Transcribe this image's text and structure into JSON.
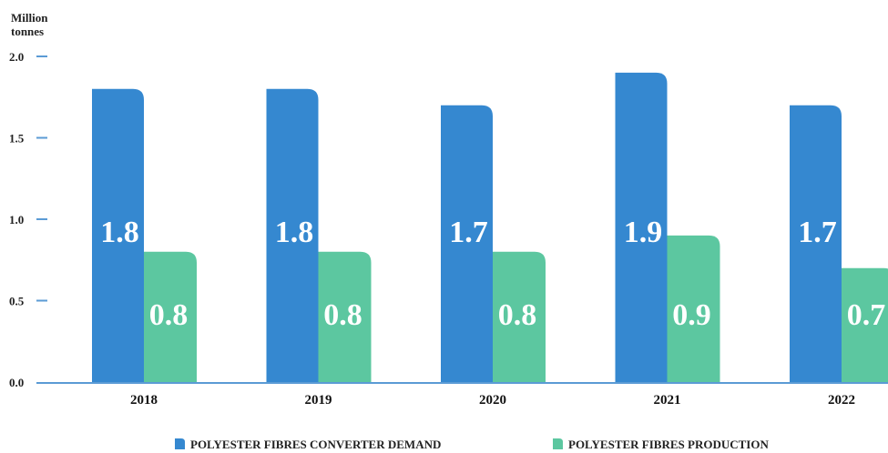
{
  "chart_data": {
    "type": "bar",
    "unit_label": [
      "Million",
      "tonnes"
    ],
    "categories": [
      "2018",
      "2019",
      "2020",
      "2021",
      "2022"
    ],
    "yticks": [
      "0.0",
      "0.5",
      "1.0",
      "1.5",
      "2.0"
    ],
    "ylim": [
      0,
      2.0
    ],
    "series": [
      {
        "name": "POLYESTER FIBRES CONVERTER DEMAND",
        "values": [
          1.8,
          1.8,
          1.7,
          1.9,
          1.7
        ],
        "labels": [
          "1.8",
          "1.8",
          "1.7",
          "1.9",
          "1.7"
        ],
        "color": "#3588d0"
      },
      {
        "name": "POLYESTER FIBRES PRODUCTION",
        "values": [
          0.8,
          0.8,
          0.8,
          0.9,
          0.7
        ],
        "labels": [
          "0.8",
          "0.8",
          "0.8",
          "0.9",
          "0.7"
        ],
        "color": "#5cc7a0"
      }
    ],
    "axis_color": "#5b9bd5",
    "grid": false,
    "legend_position": "bottom"
  }
}
